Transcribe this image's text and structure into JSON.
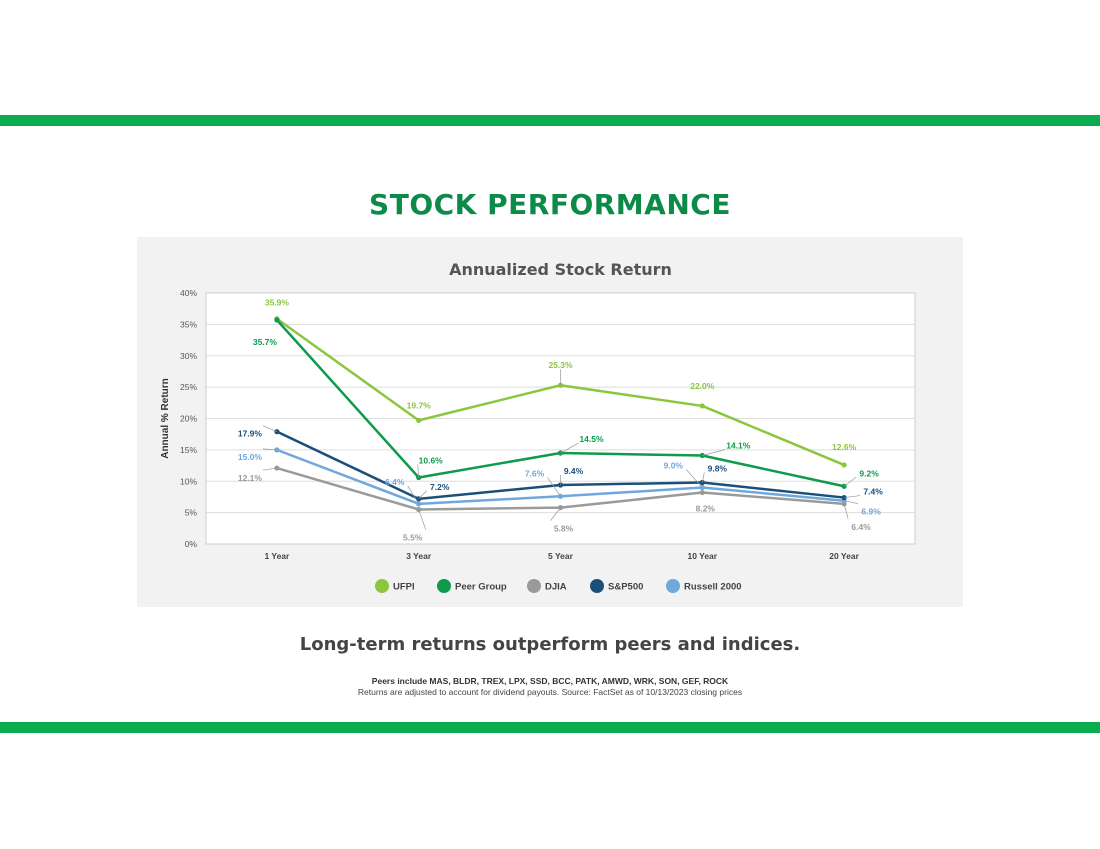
{
  "page": {
    "title": "STOCK PERFORMANCE",
    "tagline": "Long-term returns outperform peers and indices.",
    "peers_note": "Peers include MAS, BLDR, TREX, LPX, SSD, BCC, PATK, AMWD, WRK, SON, GEF, ROCK",
    "source_note": "Returns are adjusted to account for dividend payouts.  Source: FactSet as of 10/13/2023 closing prices",
    "band_color": "#0aac4f",
    "title_color": "#0b8a48"
  },
  "chart_data": {
    "type": "line",
    "title": "Annualized Stock Return",
    "xlabel": "",
    "ylabel": "Annual % Return",
    "categories": [
      "1 Year",
      "3 Year",
      "5 Year",
      "10 Year",
      "20 Year"
    ],
    "ylim": [
      0,
      40
    ],
    "yticks": [
      "0%",
      "5%",
      "10%",
      "15%",
      "20%",
      "25%",
      "30%",
      "35%",
      "40%"
    ],
    "grid": true,
    "legend_position": "bottom",
    "series": [
      {
        "name": "UFPI",
        "color": "#8cc63f",
        "values": [
          35.9,
          19.7,
          25.3,
          22.0,
          12.6
        ],
        "labels": [
          "35.9%",
          "19.7%",
          "25.3%",
          "22.0%",
          "12.6%"
        ]
      },
      {
        "name": "Peer Group",
        "color": "#0f9a4c",
        "values": [
          35.7,
          10.6,
          14.5,
          14.1,
          9.2
        ],
        "labels": [
          "35.7%",
          "10.6%",
          "14.5%",
          "14.1%",
          "9.2%"
        ]
      },
      {
        "name": "DJIA",
        "color": "#9a9a9a",
        "values": [
          12.1,
          5.5,
          5.8,
          8.2,
          6.4
        ],
        "labels": [
          "12.1%",
          "5.5%",
          "5.8%",
          "8.2%",
          "6.4%"
        ]
      },
      {
        "name": "S&P500",
        "color": "#1b4f7a",
        "values": [
          17.9,
          7.2,
          9.4,
          9.8,
          7.4
        ],
        "labels": [
          "17.9%",
          "7.2%",
          "9.4%",
          "9.8%",
          "7.4%"
        ]
      },
      {
        "name": "Russell 2000",
        "color": "#6fa8dc",
        "values": [
          15.0,
          6.4,
          7.6,
          9.0,
          6.9
        ],
        "labels": [
          "15.0%",
          "6.4%",
          "7.6%",
          "9.0%",
          "6.9%"
        ]
      }
    ]
  }
}
